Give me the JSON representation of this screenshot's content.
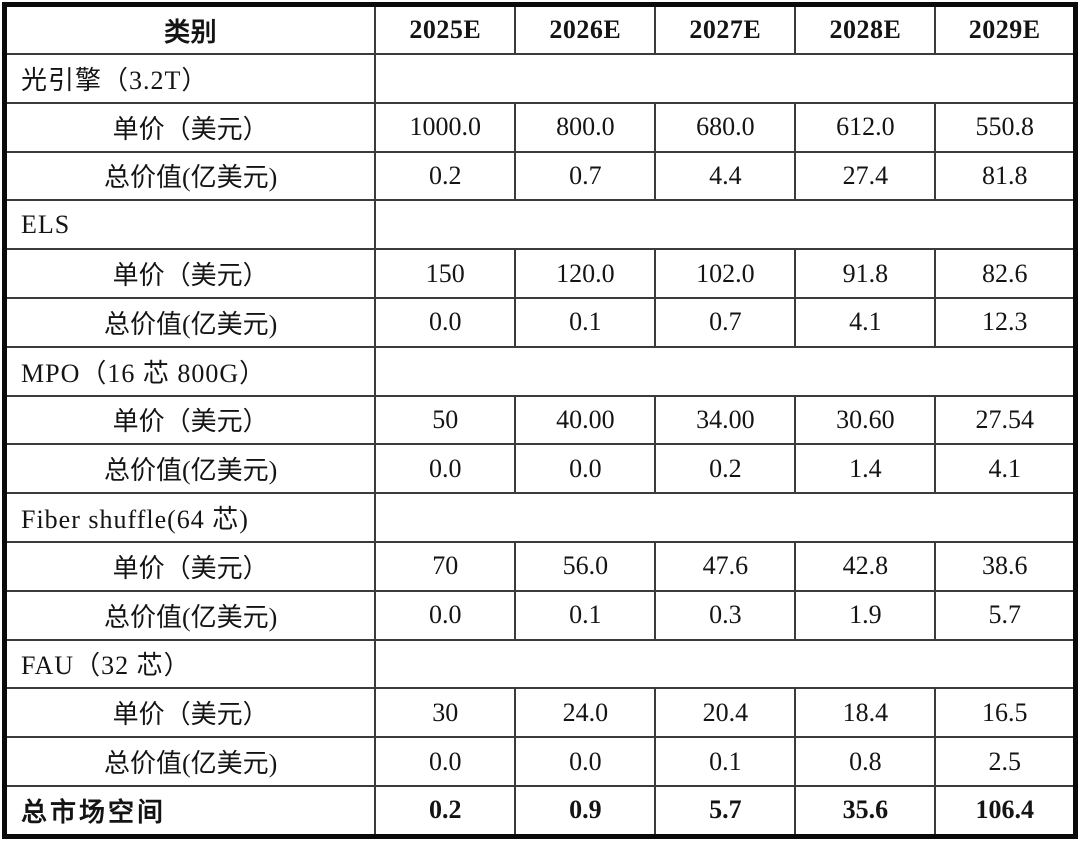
{
  "table": {
    "columns": [
      "类别",
      "2025E",
      "2026E",
      "2027E",
      "2028E",
      "2029E"
    ],
    "row_labels": {
      "unit_price": "单价（美元）",
      "total_value": "总价值(亿美元)"
    },
    "sections": [
      {
        "name": "光引擎（3.2T）",
        "unit_price": [
          "1000.0",
          "800.0",
          "680.0",
          "612.0",
          "550.8"
        ],
        "total_value": [
          "0.2",
          "0.7",
          "4.4",
          "27.4",
          "81.8"
        ]
      },
      {
        "name": "ELS",
        "unit_price": [
          "150",
          "120.0",
          "102.0",
          "91.8",
          "82.6"
        ],
        "total_value": [
          "0.0",
          "0.1",
          "0.7",
          "4.1",
          "12.3"
        ]
      },
      {
        "name": "MPO（16 芯 800G）",
        "unit_price": [
          "50",
          "40.00",
          "34.00",
          "30.60",
          "27.54"
        ],
        "total_value": [
          "0.0",
          "0.0",
          "0.2",
          "1.4",
          "4.1"
        ]
      },
      {
        "name": "Fiber shuffle(64 芯)",
        "unit_price": [
          "70",
          "56.0",
          "47.6",
          "42.8",
          "38.6"
        ],
        "total_value": [
          "0.0",
          "0.1",
          "0.3",
          "1.9",
          "5.7"
        ]
      },
      {
        "name": "FAU（32 芯）",
        "unit_price": [
          "30",
          "24.0",
          "20.4",
          "18.4",
          "16.5"
        ],
        "total_value": [
          "0.0",
          "0.0",
          "0.1",
          "0.8",
          "2.5"
        ]
      }
    ],
    "total_row": {
      "label": "总市场空间",
      "values": [
        "0.2",
        "0.9",
        "5.7",
        "35.6",
        "106.4"
      ]
    }
  }
}
